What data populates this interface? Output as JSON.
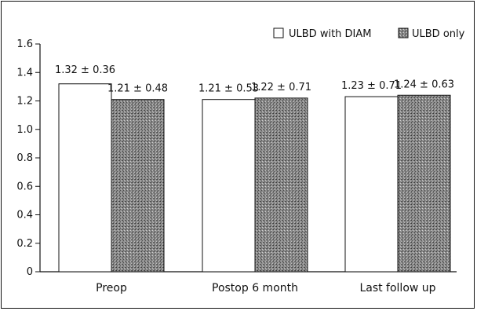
{
  "chart_data": {
    "type": "bar",
    "title": "",
    "xlabel": "",
    "ylabel": "",
    "ylim": [
      0,
      1.6
    ],
    "yticks": [
      "0",
      "0.2",
      "0.4",
      "0.6",
      "0.8",
      "1.0",
      "1.2",
      "1.4",
      "1.6"
    ],
    "categories": [
      "Preop",
      "Postop 6 month",
      "Last follow up"
    ],
    "series": [
      {
        "name": "ULBD with DIAM",
        "values": [
          1.32,
          1.21,
          1.23
        ],
        "labels": [
          "1.32 ± 0.36",
          "1.21 ± 0.53",
          "1.23 ± 0.71"
        ],
        "fill": "#ffffff"
      },
      {
        "name": "ULBD only",
        "values": [
          1.21,
          1.22,
          1.24
        ],
        "labels": [
          "1.21 ± 0.48",
          "1.22 ± 0.71",
          "1.24 ± 0.63"
        ],
        "fill": "#8a8a8a"
      }
    ],
    "legend_position": "top-right",
    "grid": false
  }
}
